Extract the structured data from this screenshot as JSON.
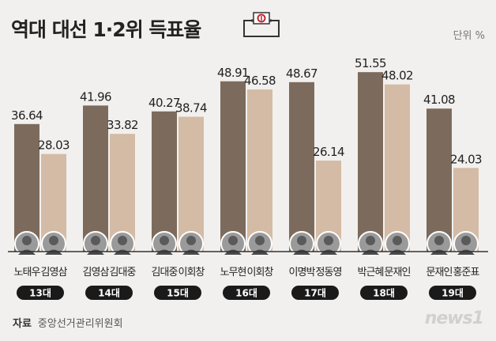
{
  "title": "역대 대선 1·2위 득표율",
  "unit": "단위 %",
  "source": {
    "label": "자료",
    "value": "중앙선거관리위원회"
  },
  "logo": "news1",
  "colors": {
    "first": "#7c6b5c",
    "second": "#d4bba5",
    "axis": "#333333",
    "pill": "#1a1a1a",
    "avatar": "#9a9a9a"
  },
  "chart_data": {
    "type": "bar",
    "title": "역대 대선 1·2위 득표율",
    "ylabel": "",
    "unit": "단위 %",
    "ylim": [
      0,
      60
    ],
    "groups": [
      {
        "election": "13대",
        "bars": [
          {
            "name": "노태우",
            "value": 36.64
          },
          {
            "name": "김영삼",
            "value": 28.03
          }
        ]
      },
      {
        "election": "14대",
        "bars": [
          {
            "name": "김영삼",
            "value": 41.96
          },
          {
            "name": "김대중",
            "value": 33.82
          }
        ]
      },
      {
        "election": "15대",
        "bars": [
          {
            "name": "김대중",
            "value": 40.27
          },
          {
            "name": "이회창",
            "value": 38.74
          }
        ]
      },
      {
        "election": "16대",
        "bars": [
          {
            "name": "노무현",
            "value": 48.91
          },
          {
            "name": "이회창",
            "value": 46.58
          }
        ]
      },
      {
        "election": "17대",
        "bars": [
          {
            "name": "이명박",
            "value": 48.67
          },
          {
            "name": "정동영",
            "value": 26.14
          }
        ]
      },
      {
        "election": "18대",
        "bars": [
          {
            "name": "박근혜",
            "value": 51.55
          },
          {
            "name": "문재인",
            "value": 48.02
          }
        ]
      },
      {
        "election": "19대",
        "bars": [
          {
            "name": "문재인",
            "value": 41.08
          },
          {
            "name": "홍준표",
            "value": 24.03
          }
        ]
      }
    ]
  }
}
